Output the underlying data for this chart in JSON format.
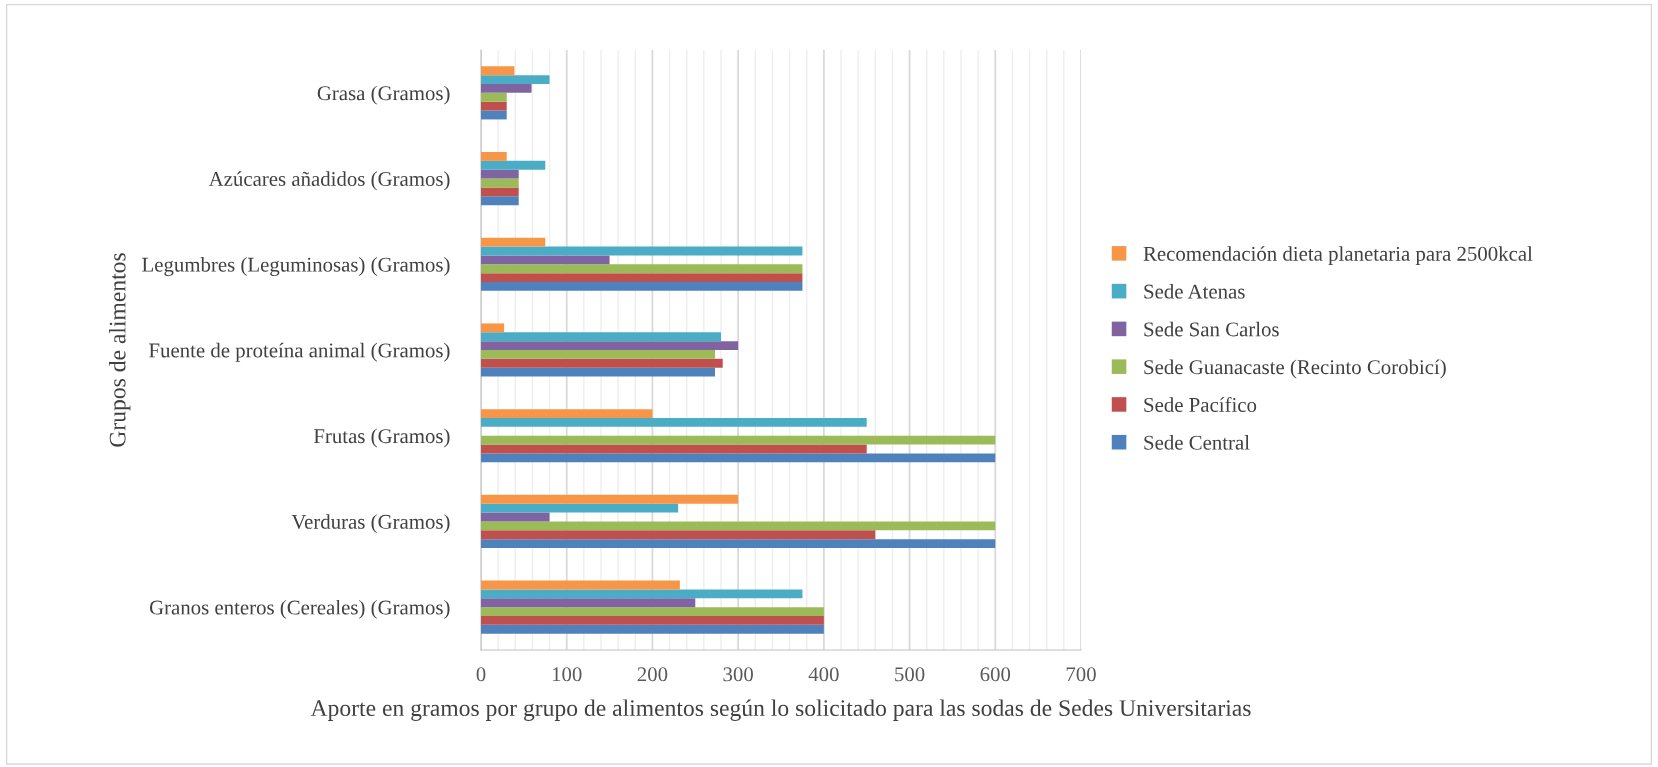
{
  "chart_data": {
    "type": "bar",
    "orientation": "horizontal",
    "xlabel": "Aporte en gramos por grupo de alimentos según lo solicitado para las sodas de Sedes Universitarias",
    "ylabel": "Grupos de alimentos",
    "categories": [
      "Grasa (Gramos)",
      "Azúcares añadidos (Gramos)",
      "Legumbres (Leguminosas) (Gramos)",
      "Fuente de proteína animal (Gramos)",
      "Frutas (Gramos)",
      "Verduras (Gramos)",
      "Granos enteros (Cereales) (Gramos)"
    ],
    "series": [
      {
        "name": "Sede Central",
        "color": "#4f81bd",
        "values": [
          30,
          44,
          375,
          273,
          600,
          600,
          400
        ]
      },
      {
        "name": "Sede Pacífico",
        "color": "#c0504d",
        "values": [
          30,
          44,
          375,
          282,
          450,
          460,
          400
        ]
      },
      {
        "name": "Sede Guanacaste (Recinto Corobicí)",
        "color": "#9bbb59",
        "values": [
          30,
          44,
          375,
          273,
          600,
          600,
          400
        ]
      },
      {
        "name": "Sede San Carlos",
        "color": "#8064a2",
        "values": [
          59,
          44,
          150,
          300,
          0,
          80,
          250
        ]
      },
      {
        "name": "Sede Atenas",
        "color": "#4bacc6",
        "values": [
          80,
          75,
          375,
          280,
          450,
          230,
          375
        ]
      },
      {
        "name": "Recomendación dieta planetaria para 2500kcal",
        "color": "#f79646",
        "values": [
          39,
          30,
          75,
          27,
          200,
          300,
          232
        ]
      }
    ],
    "xlim": [
      0,
      700
    ],
    "xticks": [
      0,
      {
        "value": 20,
        "label": null
      },
      {
        "value": 40,
        "label": null
      },
      {
        "value": 60,
        "label": null
      },
      {
        "value": 80,
        "label": null
      },
      100,
      {
        "value": 120,
        "label": null
      },
      {
        "value": 140,
        "label": null
      },
      {
        "value": 160,
        "label": null
      },
      {
        "value": 180,
        "label": null
      },
      200,
      {
        "value": 220,
        "label": null
      },
      {
        "value": 240,
        "label": null
      },
      {
        "value": 260,
        "label": null
      },
      {
        "value": 280,
        "label": null
      },
      300,
      {
        "value": 320,
        "label": null
      },
      {
        "value": 340,
        "label": null
      },
      {
        "value": 360,
        "label": null
      },
      {
        "value": 380,
        "label": null
      },
      400,
      {
        "value": 420,
        "label": null
      },
      {
        "value": 440,
        "label": null
      },
      {
        "value": 460,
        "label": null
      },
      {
        "value": 480,
        "label": null
      },
      500,
      {
        "value": 520,
        "label": null
      },
      {
        "value": 540,
        "label": null
      },
      {
        "value": 560,
        "label": null
      },
      {
        "value": 580,
        "label": null
      },
      600,
      {
        "value": 620,
        "label": null
      },
      {
        "value": 640,
        "label": null
      },
      {
        "value": 660,
        "label": null
      },
      {
        "value": 680,
        "label": null
      },
      700
    ],
    "grid": "x",
    "legend": "right"
  }
}
